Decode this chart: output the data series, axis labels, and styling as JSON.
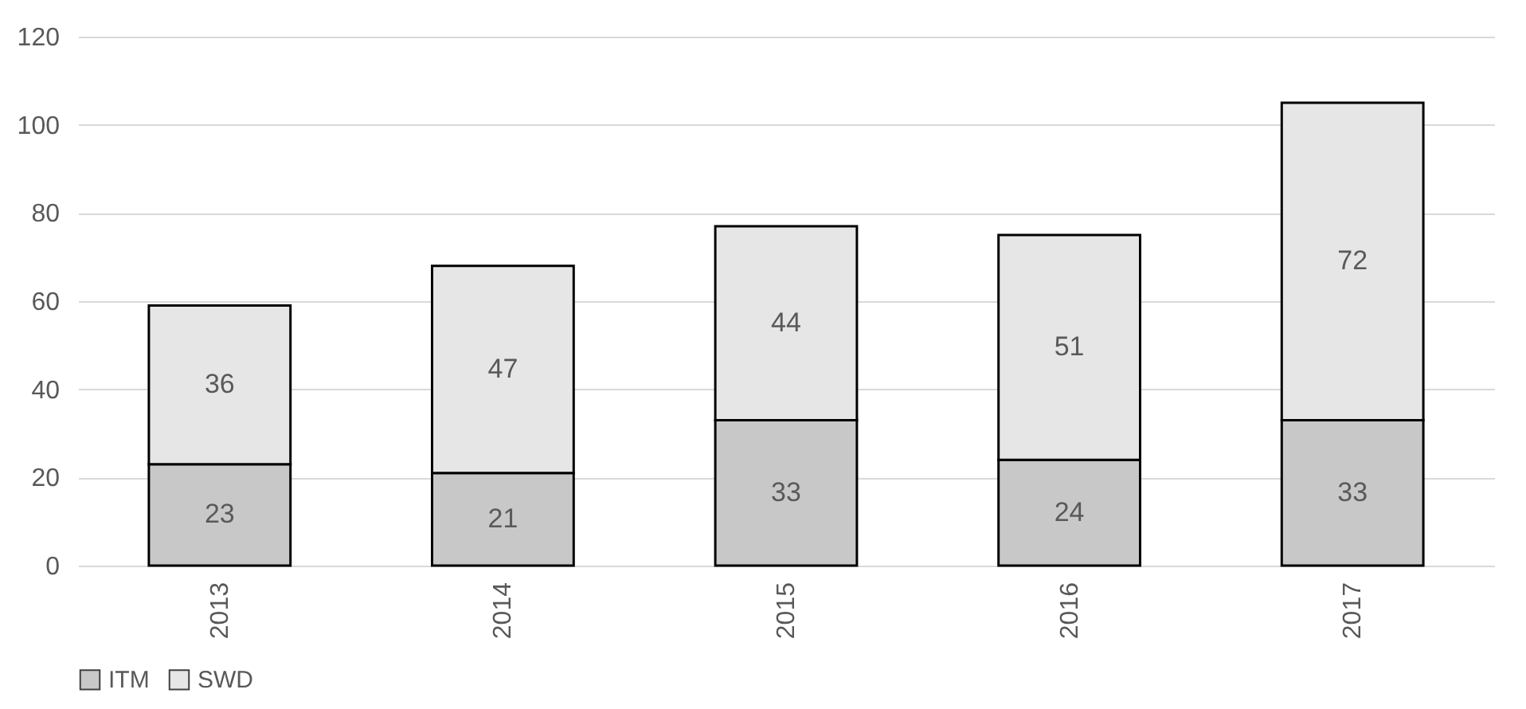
{
  "chart_data": {
    "type": "bar",
    "stacked": true,
    "categories": [
      "2013",
      "2014",
      "2015",
      "2016",
      "2017"
    ],
    "series": [
      {
        "name": "ITM",
        "color": "#c8c8c8",
        "values": [
          23,
          21,
          33,
          24,
          33
        ]
      },
      {
        "name": "SWD",
        "color": "#e6e6e6",
        "values": [
          36,
          47,
          44,
          51,
          72
        ]
      }
    ],
    "ylim": [
      0,
      120
    ],
    "yticks": [
      0,
      20,
      40,
      60,
      80,
      100,
      120
    ],
    "grid": "y",
    "legend": "bottom",
    "data_labels": true
  }
}
